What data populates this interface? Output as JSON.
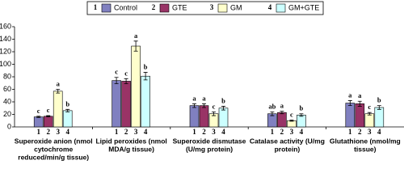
{
  "chart_data": {
    "type": "bar",
    "categories": [
      [
        "Superoxide anion (nmol",
        "cytochrome",
        "reduced/min/g tissue)"
      ],
      [
        "Lipid peroxides (nmol",
        "MDA/g tissue)"
      ],
      [
        "Superoxide dismutase",
        "(U/mg protein)"
      ],
      [
        "Catalase activity (U/mg",
        "protein)"
      ],
      [
        "Glutathione (nmol/mg",
        "tissue)"
      ]
    ],
    "series": [
      {
        "id": "1",
        "name": "Control",
        "color": "#8080c0",
        "values": [
          16,
          74,
          34,
          21,
          38
        ],
        "errors": [
          1,
          5,
          3,
          3,
          4
        ],
        "letters": [
          "c",
          "c",
          "a",
          "ab",
          "a"
        ]
      },
      {
        "id": "2",
        "name": "GTE",
        "color": "#993366",
        "values": [
          17,
          73,
          34,
          23,
          37
        ],
        "errors": [
          1,
          4,
          3,
          2,
          4
        ],
        "letters": [
          "c",
          "c",
          "a",
          "a",
          "a"
        ]
      },
      {
        "id": "3",
        "name": "GM",
        "color": "#ffffcc",
        "values": [
          57,
          129,
          21,
          10,
          21
        ],
        "errors": [
          3,
          8,
          3,
          1,
          2
        ],
        "letters": [
          "a",
          "a",
          "c",
          "c",
          "c"
        ]
      },
      {
        "id": "4",
        "name": "GM+GTE",
        "color": "#ccffff",
        "values": [
          26,
          81,
          30,
          19,
          31
        ],
        "errors": [
          2,
          6,
          3,
          2,
          3
        ],
        "letters": [
          "b",
          "b",
          "b",
          "b",
          "b"
        ]
      }
    ],
    "ylim": [
      0,
      160
    ],
    "yticks": [
      0,
      20,
      40,
      60,
      80,
      100,
      120,
      140,
      160
    ]
  }
}
